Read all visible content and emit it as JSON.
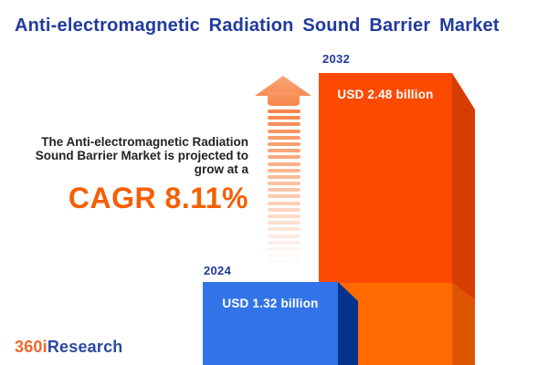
{
  "title": "Anti-electromagnetic Radiation Sound Barrier Market",
  "description": {
    "line1": "The Anti-electromagnetic Radiation",
    "line2": "Sound Barrier Market is projected to",
    "line3": "grow at a",
    "cagr_label": "CAGR 8.11%"
  },
  "chart_data": {
    "type": "bar",
    "title": "Anti-electromagnetic Radiation Sound Barrier Market",
    "categories": [
      "2024",
      "2032"
    ],
    "values": [
      1.32,
      2.48
    ],
    "unit": "USD billion",
    "value_labels": [
      "USD 1.32 billion",
      "USD 2.48 billion"
    ],
    "cagr_percent": 8.11,
    "ylim": [
      0,
      2.48
    ],
    "grid": false,
    "legend": "none",
    "bar_colors": [
      "#3274E8",
      "#FC4A00"
    ]
  },
  "growth_arrow": {
    "icon": "up-arrow-dashed-icon",
    "head_color": "#F68A52",
    "stripe_color": "#F8864B"
  },
  "logo": {
    "prefix": "360i",
    "suffix": "Research",
    "prefix_color": "#F0682B",
    "suffix_color": "#2A49A0"
  },
  "colors": {
    "background": "#FFFFFF",
    "title_blue": "#213A9C",
    "body_text": "#222222",
    "cagr_orange": "#F55F03",
    "bar_2024_front": "#3274E8",
    "bar_2024_side": "#04338D",
    "bar_2032_front_top": "#FC4A00",
    "bar_2032_front_bottom": "#FF6B00",
    "bar_2032_side_top": "#D83D00",
    "bar_2032_side_bottom": "#E05600",
    "bar_value_text": "#FFFFFF"
  }
}
